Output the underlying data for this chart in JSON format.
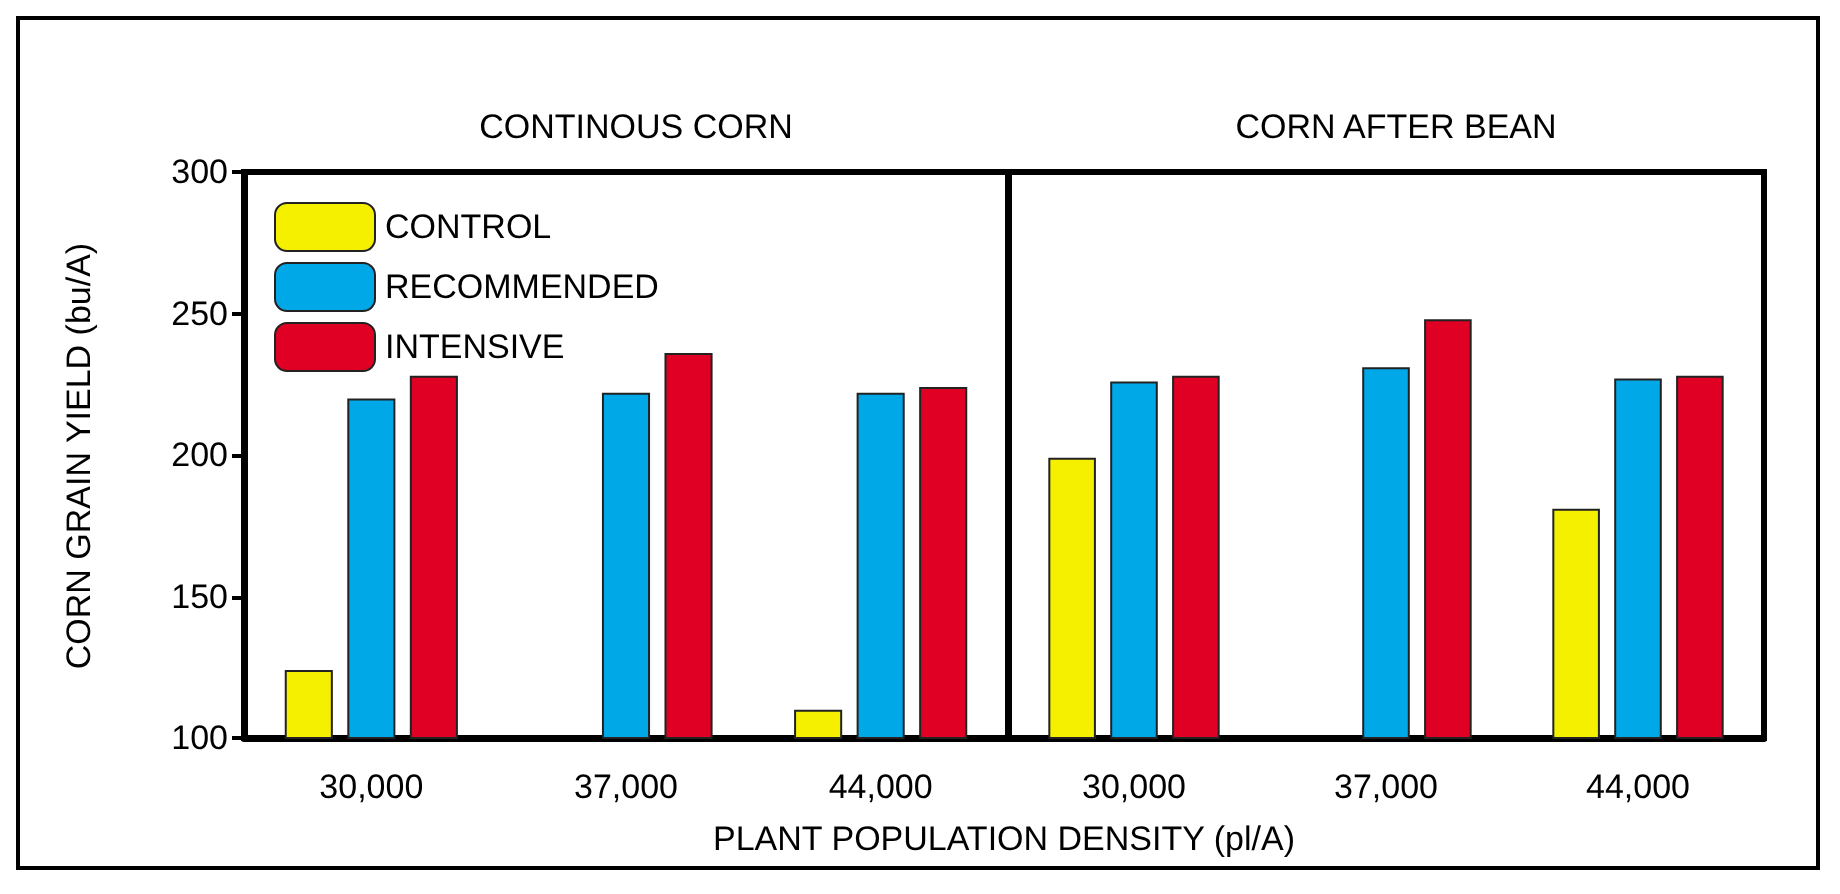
{
  "chart_data": [
    {
      "type": "bar",
      "title": "CONTINOUS CORN",
      "xlabel": "PLANT POPULATION DENSITY (pl/A)",
      "ylabel": "CORN GRAIN YIELD (bu/A)",
      "categories": [
        "30,000",
        "37,000",
        "44,000"
      ],
      "ylim": [
        100,
        300
      ],
      "yticks": [
        100,
        150,
        200,
        250,
        300
      ],
      "grid": false,
      "legend": "top left",
      "series": [
        {
          "name": "CONTROL",
          "color": "#f5f000",
          "values": [
            124,
            null,
            110
          ]
        },
        {
          "name": "RECOMMENDED",
          "color": "#00a8e8",
          "values": [
            220,
            222,
            222
          ]
        },
        {
          "name": "INTENSIVE",
          "color": "#e00024",
          "values": [
            228,
            236,
            224
          ]
        }
      ]
    },
    {
      "type": "bar",
      "title": "CORN AFTER BEAN",
      "categories": [
        "30,000",
        "37,000",
        "44,000"
      ],
      "ylim": [
        100,
        300
      ],
      "yticks": [
        100,
        150,
        200,
        250,
        300
      ],
      "grid": false,
      "tick_labels": "x",
      "series": [
        {
          "color": "#f5f000",
          "values": [
            199,
            null,
            181
          ]
        },
        {
          "color": "#00a8e8",
          "values": [
            226,
            231,
            227
          ]
        },
        {
          "color": "#e00024",
          "values": [
            228,
            248,
            228
          ]
        }
      ]
    }
  ]
}
